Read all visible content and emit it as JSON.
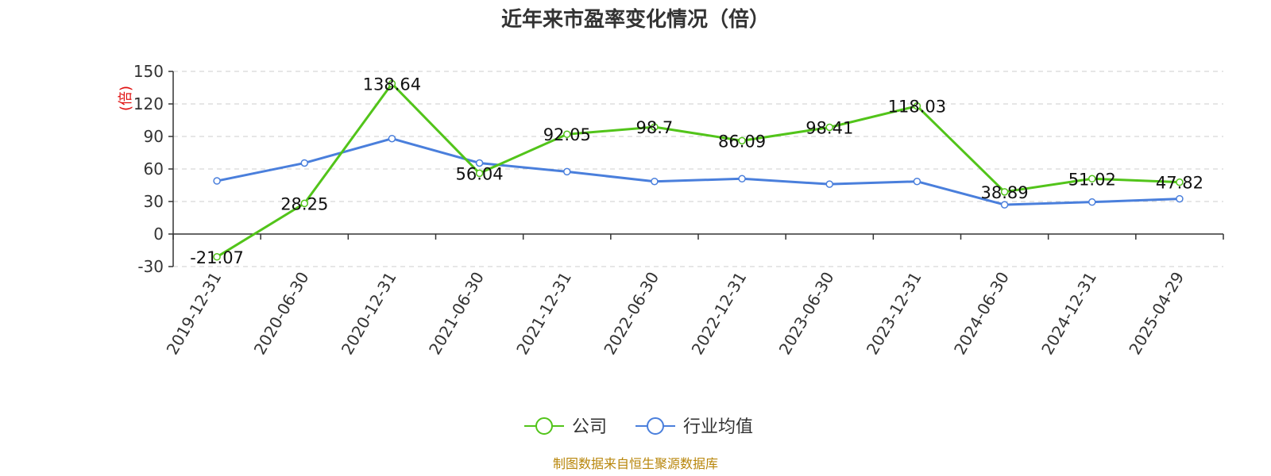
{
  "chart_data": {
    "type": "line",
    "title": "近年来市盈率变化情况（倍）",
    "ylabel": "(倍)",
    "xlabel": "",
    "ylim": [
      -30,
      150
    ],
    "yticks": [
      -30,
      0,
      30,
      60,
      90,
      120,
      150
    ],
    "grid": true,
    "legend_position": "bottom-center",
    "categories": [
      "2019-12-31",
      "2020-06-30",
      "2020-12-31",
      "2021-06-30",
      "2021-12-31",
      "2022-06-30",
      "2022-12-31",
      "2023-06-30",
      "2023-12-31",
      "2024-06-30",
      "2024-12-31",
      "2025-04-29"
    ],
    "series": [
      {
        "name": "公司",
        "color": "#52c41a",
        "values": [
          -21.07,
          28.25,
          138.64,
          56.04,
          92.05,
          98.7,
          86.09,
          98.41,
          118.03,
          38.89,
          51.02,
          47.82
        ],
        "labels": [
          "-21.07",
          "28.25",
          "138.64",
          "56.04",
          "92.05",
          "98.7",
          "86.09",
          "98.41",
          "118.03",
          "38.89",
          "51.02",
          "47.82"
        ]
      },
      {
        "name": "行业均值",
        "color": "#4a7fdc",
        "values": [
          49,
          65.5,
          88,
          65.5,
          57.5,
          48.5,
          51,
          46,
          48.5,
          27,
          29.5,
          32.5
        ]
      }
    ]
  },
  "source": {
    "text": "制图数据来自恒生聚源数据库",
    "color": "#b8860b"
  }
}
